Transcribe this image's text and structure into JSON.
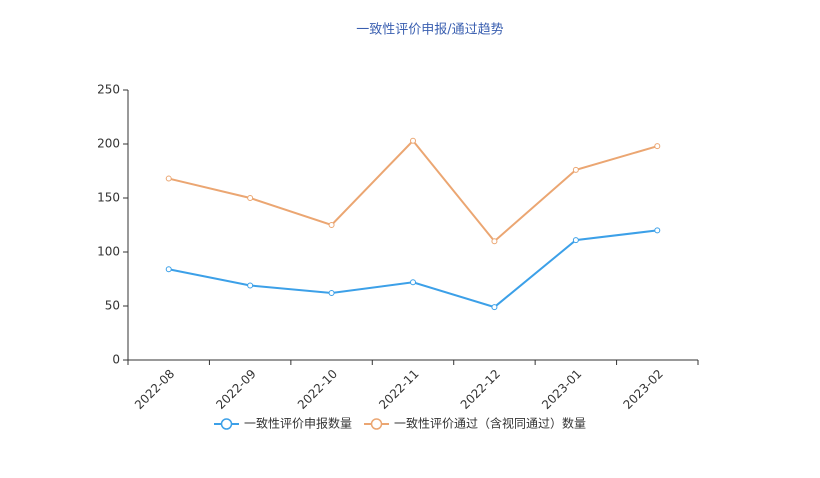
{
  "chart_data": {
    "type": "line",
    "title": "一致性评价申报/通过趋势",
    "categories": [
      "2022-08",
      "2022-09",
      "2022-10",
      "2022-11",
      "2022-12",
      "2023-01",
      "2023-02"
    ],
    "series": [
      {
        "name": "一致性评价申报数量",
        "color": "#3ca0e8",
        "values": [
          84,
          69,
          62,
          72,
          49,
          111,
          120
        ]
      },
      {
        "name": "一致性评价通过（含视同通过）数量",
        "color": "#eba672",
        "values": [
          168,
          150,
          125,
          203,
          110,
          176,
          198
        ]
      }
    ],
    "ylim": [
      0,
      250
    ],
    "yticks": [
      0,
      50,
      100,
      150,
      200,
      250
    ],
    "grid": false
  }
}
